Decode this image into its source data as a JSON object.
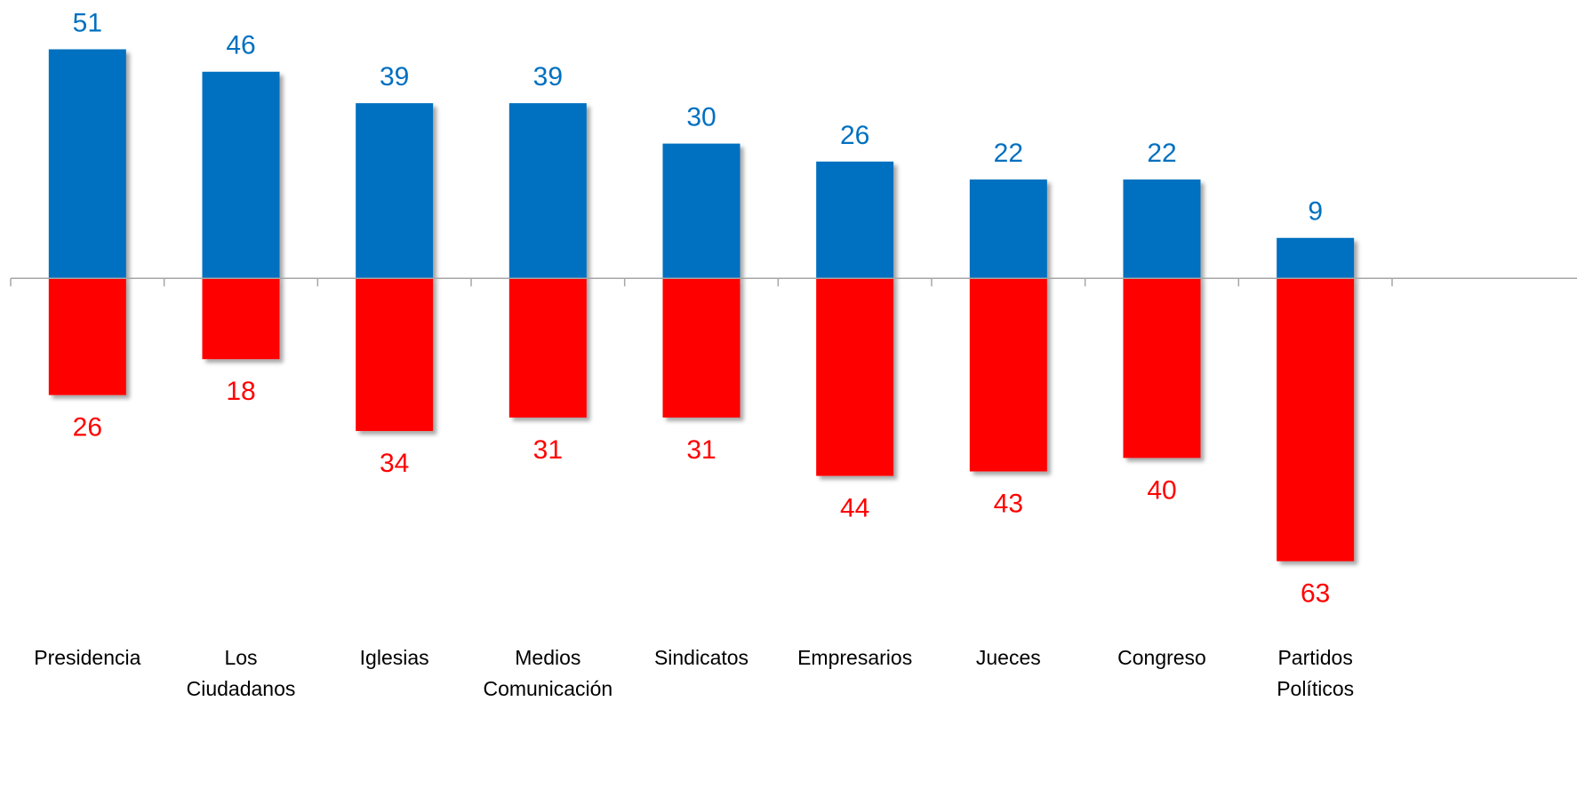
{
  "chart_data": {
    "type": "diverging_bar",
    "categories": [
      "Presidencia",
      "Los Ciudadanos",
      "Iglesias",
      "Medios Comunicación",
      "Sindicatos",
      "Empresarios",
      "Jueces",
      "Congreso",
      "Partidos Políticos"
    ],
    "series": [
      {
        "color": "#0070c0",
        "values": [
          51,
          46,
          39,
          39,
          30,
          26,
          22,
          22,
          9
        ]
      },
      {
        "color": "#ff0000",
        "values": [
          -26,
          -18,
          -34,
          -31,
          -31,
          -44,
          -43,
          -40,
          -63
        ],
        "value_labels": [
          "26",
          "18",
          "34",
          "31",
          "31",
          "44",
          "43",
          "40",
          "63"
        ]
      }
    ],
    "ylim": [
      -70,
      60
    ]
  }
}
